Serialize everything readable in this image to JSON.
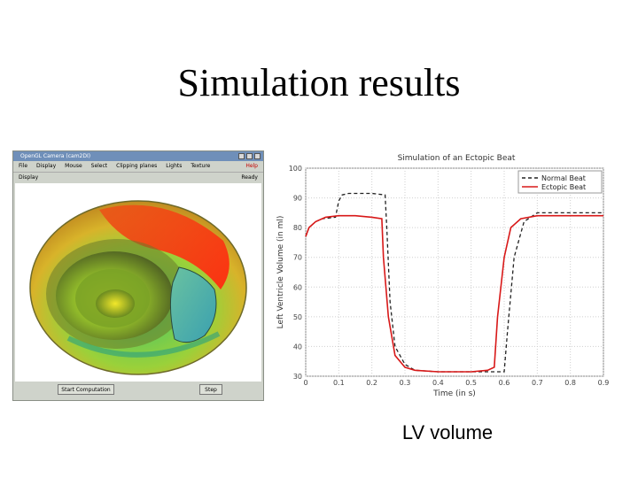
{
  "slide": {
    "title": "Simulation results",
    "caption": "LV volume"
  },
  "app": {
    "window_title": "OpenGL Camera (cam2DI)",
    "menu": [
      "File",
      "Display",
      "Mouse",
      "Select",
      "Clipping planes",
      "Lights",
      "Texture"
    ],
    "help_label": "Help",
    "status_label": "Display",
    "status_value": "Ready",
    "start_button": "Start Computation",
    "step_button": "Step",
    "colors": {
      "title_bar": "#6f8fb9",
      "window_bg": "#cfd3cb",
      "help": "#c40000"
    },
    "icons": [
      "minimize-icon",
      "maximize-icon",
      "close-icon"
    ]
  },
  "chart_data": {
    "type": "line",
    "title": "Simulation of an Ectopic Beat",
    "xlabel": "Time (in s)",
    "ylabel": "Left Ventricle Volume (in ml)",
    "xlim": [
      0,
      0.9
    ],
    "ylim": [
      30,
      100
    ],
    "xticks": [
      "0",
      "0.1",
      "0.2",
      "0.3",
      "0.4",
      "0.5",
      "0.6",
      "0.7",
      "0.8",
      "0.9"
    ],
    "yticks": [
      "30",
      "40",
      "50",
      "60",
      "70",
      "80",
      "90",
      "100"
    ],
    "grid": true,
    "legend": "top-right",
    "series": [
      {
        "name": "Normal Beat",
        "style": "dashed",
        "color": "#222222",
        "x": [
          0,
          0.01,
          0.03,
          0.05,
          0.09,
          0.1,
          0.11,
          0.13,
          0.16,
          0.2,
          0.24,
          0.245,
          0.255,
          0.27,
          0.3,
          0.33,
          0.4,
          0.5,
          0.58,
          0.6,
          0.61,
          0.63,
          0.66,
          0.7,
          0.8,
          0.9
        ],
        "y": [
          77,
          80,
          82,
          83,
          83.5,
          89,
          91,
          91.5,
          91.5,
          91.5,
          91,
          80,
          55,
          40,
          34,
          32,
          31.5,
          31.5,
          31.5,
          31.5,
          45,
          70,
          82,
          85,
          85,
          85
        ]
      },
      {
        "name": "Ectopic Beat",
        "style": "solid",
        "color": "#d81818",
        "x": [
          0,
          0.01,
          0.03,
          0.06,
          0.1,
          0.15,
          0.2,
          0.23,
          0.235,
          0.25,
          0.27,
          0.3,
          0.33,
          0.4,
          0.5,
          0.55,
          0.57,
          0.58,
          0.6,
          0.62,
          0.65,
          0.7,
          0.8,
          0.9
        ],
        "y": [
          77,
          80,
          82,
          83.5,
          84,
          84,
          83.5,
          83,
          70,
          50,
          37,
          33,
          32,
          31.5,
          31.5,
          32,
          33,
          50,
          70,
          80,
          83,
          84,
          84,
          84
        ]
      }
    ]
  }
}
